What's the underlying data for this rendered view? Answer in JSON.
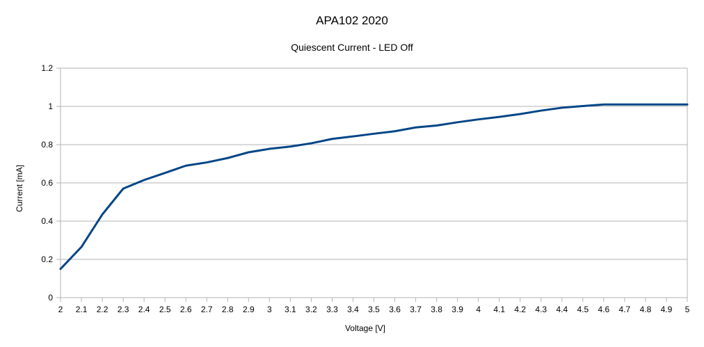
{
  "chart_data": {
    "type": "line",
    "title": "APA102 2020",
    "subtitle": "Quiescent Current - LED Off",
    "xlabel": "Voltage [V]",
    "ylabel": "Current [mA]",
    "categories": [
      "2",
      "2.1",
      "2.2",
      "2.3",
      "2.4",
      "2.5",
      "2.6",
      "2.7",
      "2.8",
      "2.9",
      "3",
      "3.1",
      "3.2",
      "3.3",
      "3.4",
      "3.5",
      "3.6",
      "3.7",
      "3.8",
      "3.9",
      "4",
      "4.1",
      "4.2",
      "4.3",
      "4.4",
      "4.5",
      "4.6",
      "4.7",
      "4.8",
      "4.9",
      "5"
    ],
    "ylim": [
      0,
      1.2
    ],
    "yticks": [
      "0",
      "0.2",
      "0.4",
      "0.6",
      "0.8",
      "1",
      "1.2"
    ],
    "grid": true,
    "series": [
      {
        "name": "Current",
        "color": "#004586",
        "values": [
          0.15,
          0.265,
          0.435,
          0.57,
          0.615,
          0.652,
          0.69,
          0.707,
          0.73,
          0.76,
          0.778,
          0.79,
          0.807,
          0.83,
          0.843,
          0.857,
          0.87,
          0.89,
          0.9,
          0.917,
          0.932,
          0.945,
          0.96,
          0.978,
          0.993,
          1.002,
          1.01,
          1.01,
          1.01,
          1.01,
          1.01
        ]
      }
    ]
  }
}
